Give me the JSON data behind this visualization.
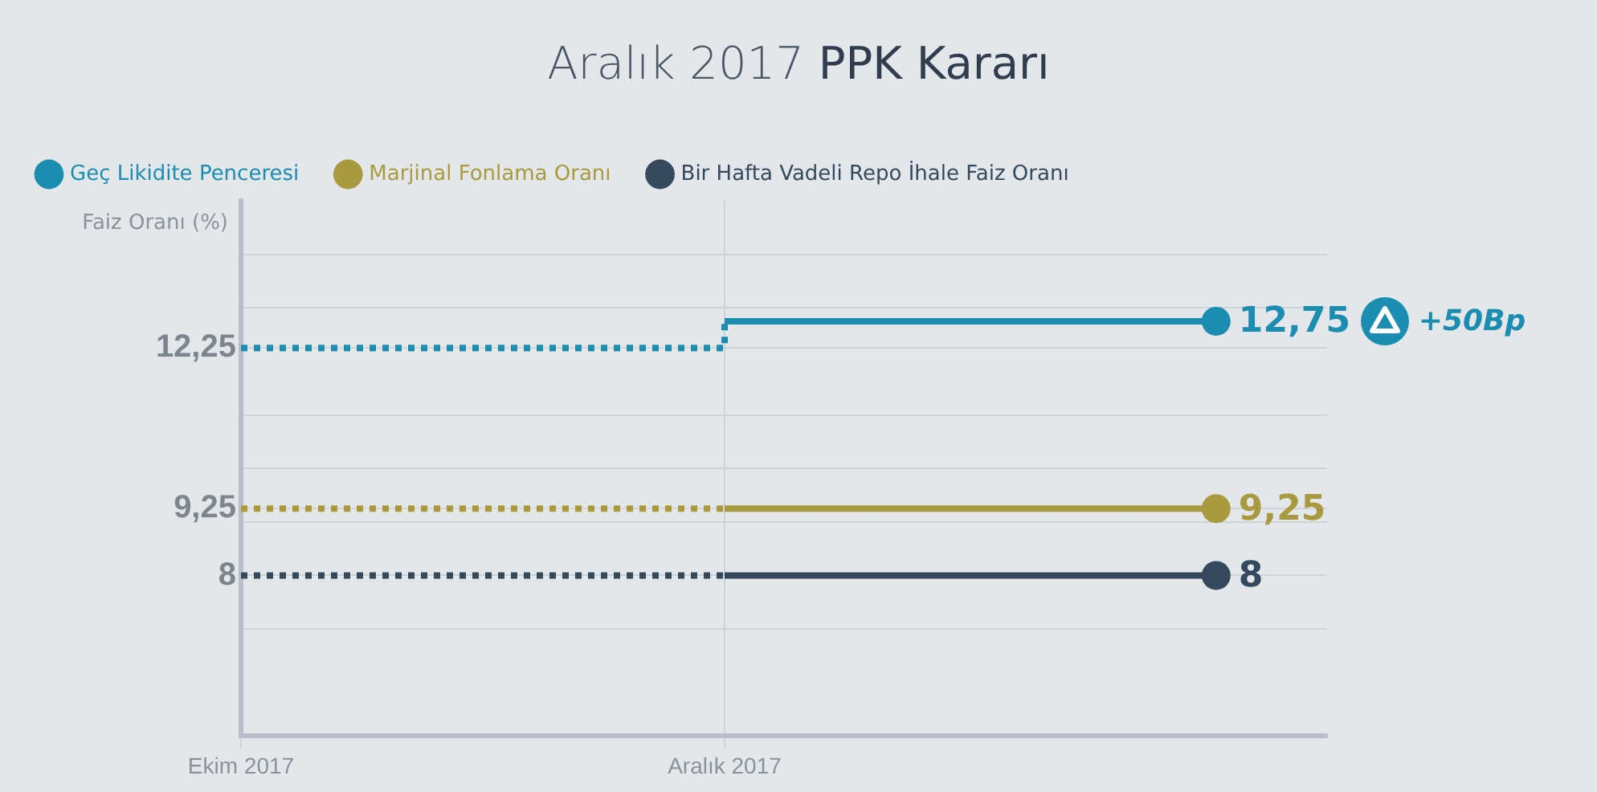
{
  "chart_data": {
    "type": "step",
    "title": "Aralık 2017 PPK Kararı",
    "ylabel": "Faiz Oranı (%)",
    "x": [
      "2017-10",
      "2017-12",
      "2018-02"
    ],
    "series": [
      {
        "name": "Geç Likidite Penceresi",
        "color": "#1b8db0",
        "values": [
          12.25,
          12.75,
          12.75
        ],
        "value_labels": [
          null,
          null,
          "12,75"
        ]
      },
      {
        "name": "Marjinal Fonlama Oranı",
        "color": "#a99a3f",
        "values": [
          9.25,
          9.25,
          9.25
        ],
        "value_labels": [
          null,
          null,
          "9,25"
        ]
      },
      {
        "name": "Bir Hafta Vadeli Repo İhale Faiz Oranı",
        "color": "#34495e",
        "values": [
          8,
          8,
          8
        ],
        "value_labels": [
          null,
          null,
          "8"
        ]
      }
    ],
    "xlim": [
      "2017-10",
      "2018-02-15"
    ],
    "xticks": [
      {
        "value": "2017-10",
        "label": "Ekim 2017"
      },
      {
        "value": "2017-12",
        "label": "Aralık 2017"
      }
    ],
    "ylim": [
      5,
      15
    ],
    "yticks": [
      {
        "value": 7,
        "label": null
      },
      8,
      {
        "value": 9,
        "label": null
      },
      {
        "value": 9.25,
        "label": "9,25"
      },
      {
        "value": 10,
        "label": null
      },
      {
        "value": 11,
        "label": null
      },
      {
        "value": 12.25,
        "label": "12,25"
      },
      {
        "value": 13,
        "label": null
      },
      {
        "value": 14,
        "label": null
      }
    ],
    "grid": true,
    "legend": "top",
    "annotations": [
      "+50Bp"
    ]
  }
}
